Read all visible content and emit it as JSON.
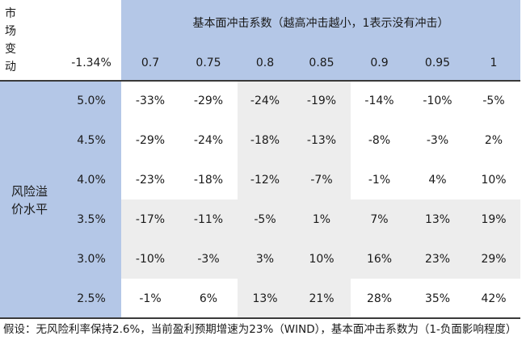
{
  "corner_label": [
    "市场",
    "变动"
  ],
  "corner_value": "-1.34%",
  "header_title": "基本面冲击系数（越高冲击越小，1表示没有冲击）",
  "coefficients": [
    "0.7",
    "0.75",
    "0.8",
    "0.85",
    "0.9",
    "0.95",
    "1"
  ],
  "side_label": [
    "风险溢",
    "价水平"
  ],
  "rows": [
    {
      "premium": "5.0%",
      "values": [
        "-33%",
        "-29%",
        "-24%",
        "-19%",
        "-14%",
        "-10%",
        "-5%"
      ]
    },
    {
      "premium": "4.5%",
      "values": [
        "-29%",
        "-24%",
        "-18%",
        "-13%",
        "-8%",
        "-3%",
        "2%"
      ]
    },
    {
      "premium": "4.0%",
      "values": [
        "-23%",
        "-18%",
        "-12%",
        "-7%",
        "-1%",
        "4%",
        "10%"
      ]
    },
    {
      "premium": "3.5%",
      "values": [
        "-17%",
        "-11%",
        "-5%",
        "1%",
        "7%",
        "13%",
        "19%"
      ]
    },
    {
      "premium": "3.0%",
      "values": [
        "-10%",
        "-3%",
        "3%",
        "10%",
        "16%",
        "23%",
        "29%"
      ]
    },
    {
      "premium": "2.5%",
      "values": [
        "-1%",
        "6%",
        "13%",
        "21%",
        "28%",
        "35%",
        "42%"
      ]
    }
  ],
  "footnote": "假设：无风险利率保持2.6%，当前盈利预期增速为23%（WIND），基本面冲击系数为（1-负面影响程度）",
  "colors": {
    "header_blue": "#b4c7e7",
    "band_gray": "#ededed",
    "rule": "#3a3a3a"
  }
}
